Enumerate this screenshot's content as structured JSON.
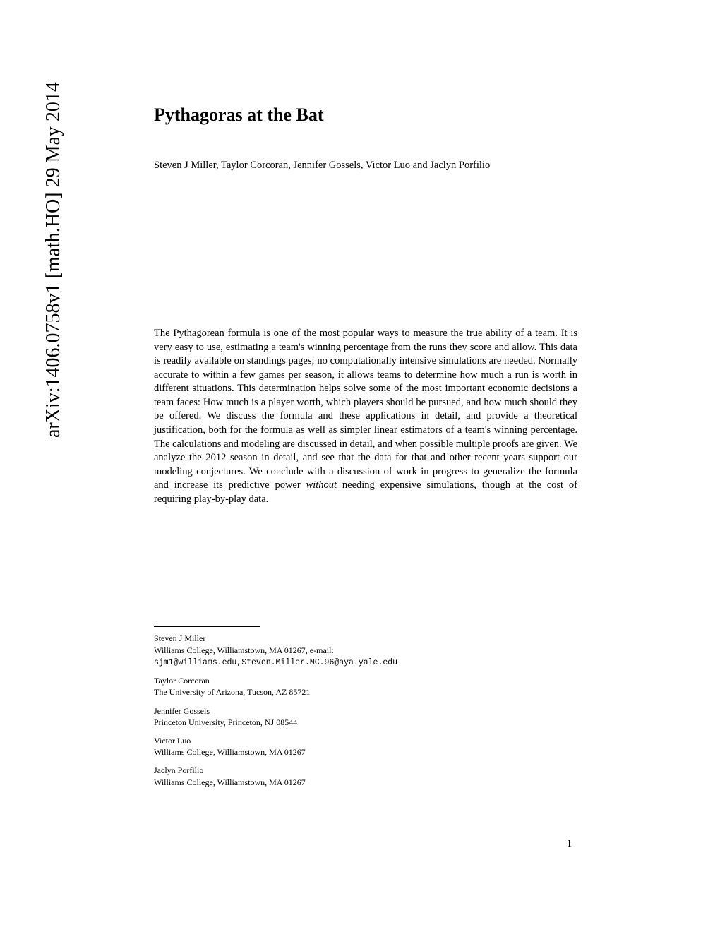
{
  "arxiv": {
    "identifier": "arXiv:1406.0758v1  [math.HO]  29 May 2014"
  },
  "title": "Pythagoras at the Bat",
  "authors": "Steven J Miller, Taylor Corcoran, Jennifer Gossels, Victor Luo and Jaclyn Porfilio",
  "abstract": {
    "part1": "The Pythagorean formula is one of the most popular ways to measure the true ability of a team. It is very easy to use, estimating a team's winning percentage from the runs they score and allow. This data is readily available on standings pages; no computationally intensive simulations are needed. Normally accurate to within a few games per season, it allows teams to determine how much a run is worth in different situations. This determination helps solve some of the most important economic decisions a team faces: How much is a player worth, which players should be pursued, and how much should they be offered. We discuss the formula and these applications in detail, and provide a theoretical justification, both for the formula as well as simpler linear estimators of a team's winning percentage. The calculations and modeling are discussed in detail, and when possible multiple proofs are given. We analyze the 2012 season in detail, and see that the data for that and other recent years support our modeling conjectures. We conclude with a discussion of work in progress to generalize the formula and increase its predictive power ",
    "italic": "without",
    "part2": " needing expensive simulations, though at the cost of requiring play-by-play data."
  },
  "affiliations": [
    {
      "name": "Steven J Miller",
      "detail_prefix": "Williams College, Williamstown, MA 01267, e-mail: ",
      "email": "sjm1@williams.edu,Steven.Miller.MC.96@aya.yale.edu"
    },
    {
      "name": "Taylor Corcoran",
      "detail": "The University of Arizona, Tucson, AZ 85721"
    },
    {
      "name": "Jennifer Gossels",
      "detail": "Princeton University, Princeton, NJ 08544"
    },
    {
      "name": "Victor Luo",
      "detail": "Williams College, Williamstown, MA 01267"
    },
    {
      "name": "Jaclyn Porfilio",
      "detail": "Williams College, Williamstown, MA 01267"
    }
  ],
  "page_number": "1"
}
